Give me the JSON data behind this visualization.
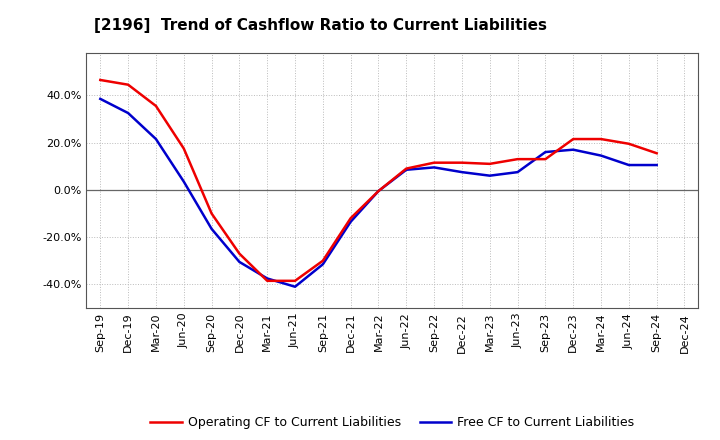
{
  "title": "[2196]  Trend of Cashflow Ratio to Current Liabilities",
  "x_labels": [
    "Sep-19",
    "Dec-19",
    "Mar-20",
    "Jun-20",
    "Sep-20",
    "Dec-20",
    "Mar-21",
    "Jun-21",
    "Sep-21",
    "Dec-21",
    "Mar-22",
    "Jun-22",
    "Sep-22",
    "Dec-22",
    "Mar-23",
    "Jun-23",
    "Sep-23",
    "Dec-23",
    "Mar-24",
    "Jun-24",
    "Sep-24",
    "Dec-24"
  ],
  "operating_cf": [
    0.465,
    0.445,
    0.355,
    0.175,
    -0.1,
    -0.27,
    -0.385,
    -0.385,
    -0.3,
    -0.12,
    -0.005,
    0.09,
    0.115,
    0.115,
    0.11,
    0.13,
    0.13,
    0.215,
    0.215,
    0.195,
    0.155,
    null
  ],
  "free_cf": [
    0.385,
    0.325,
    0.215,
    0.035,
    -0.165,
    -0.305,
    -0.375,
    -0.41,
    -0.315,
    -0.135,
    -0.005,
    0.085,
    0.095,
    0.075,
    0.06,
    0.075,
    0.16,
    0.17,
    0.145,
    0.105,
    0.105,
    null
  ],
  "ylim": [
    -0.5,
    0.58
  ],
  "yticks": [
    -0.4,
    -0.2,
    0.0,
    0.2,
    0.4
  ],
  "operating_color": "#EE0000",
  "free_color": "#0000CC",
  "grid_color": "#bbbbbb",
  "background_color": "#ffffff",
  "legend_op": "Operating CF to Current Liabilities",
  "legend_free": "Free CF to Current Liabilities",
  "title_fontsize": 11,
  "tick_fontsize": 8
}
